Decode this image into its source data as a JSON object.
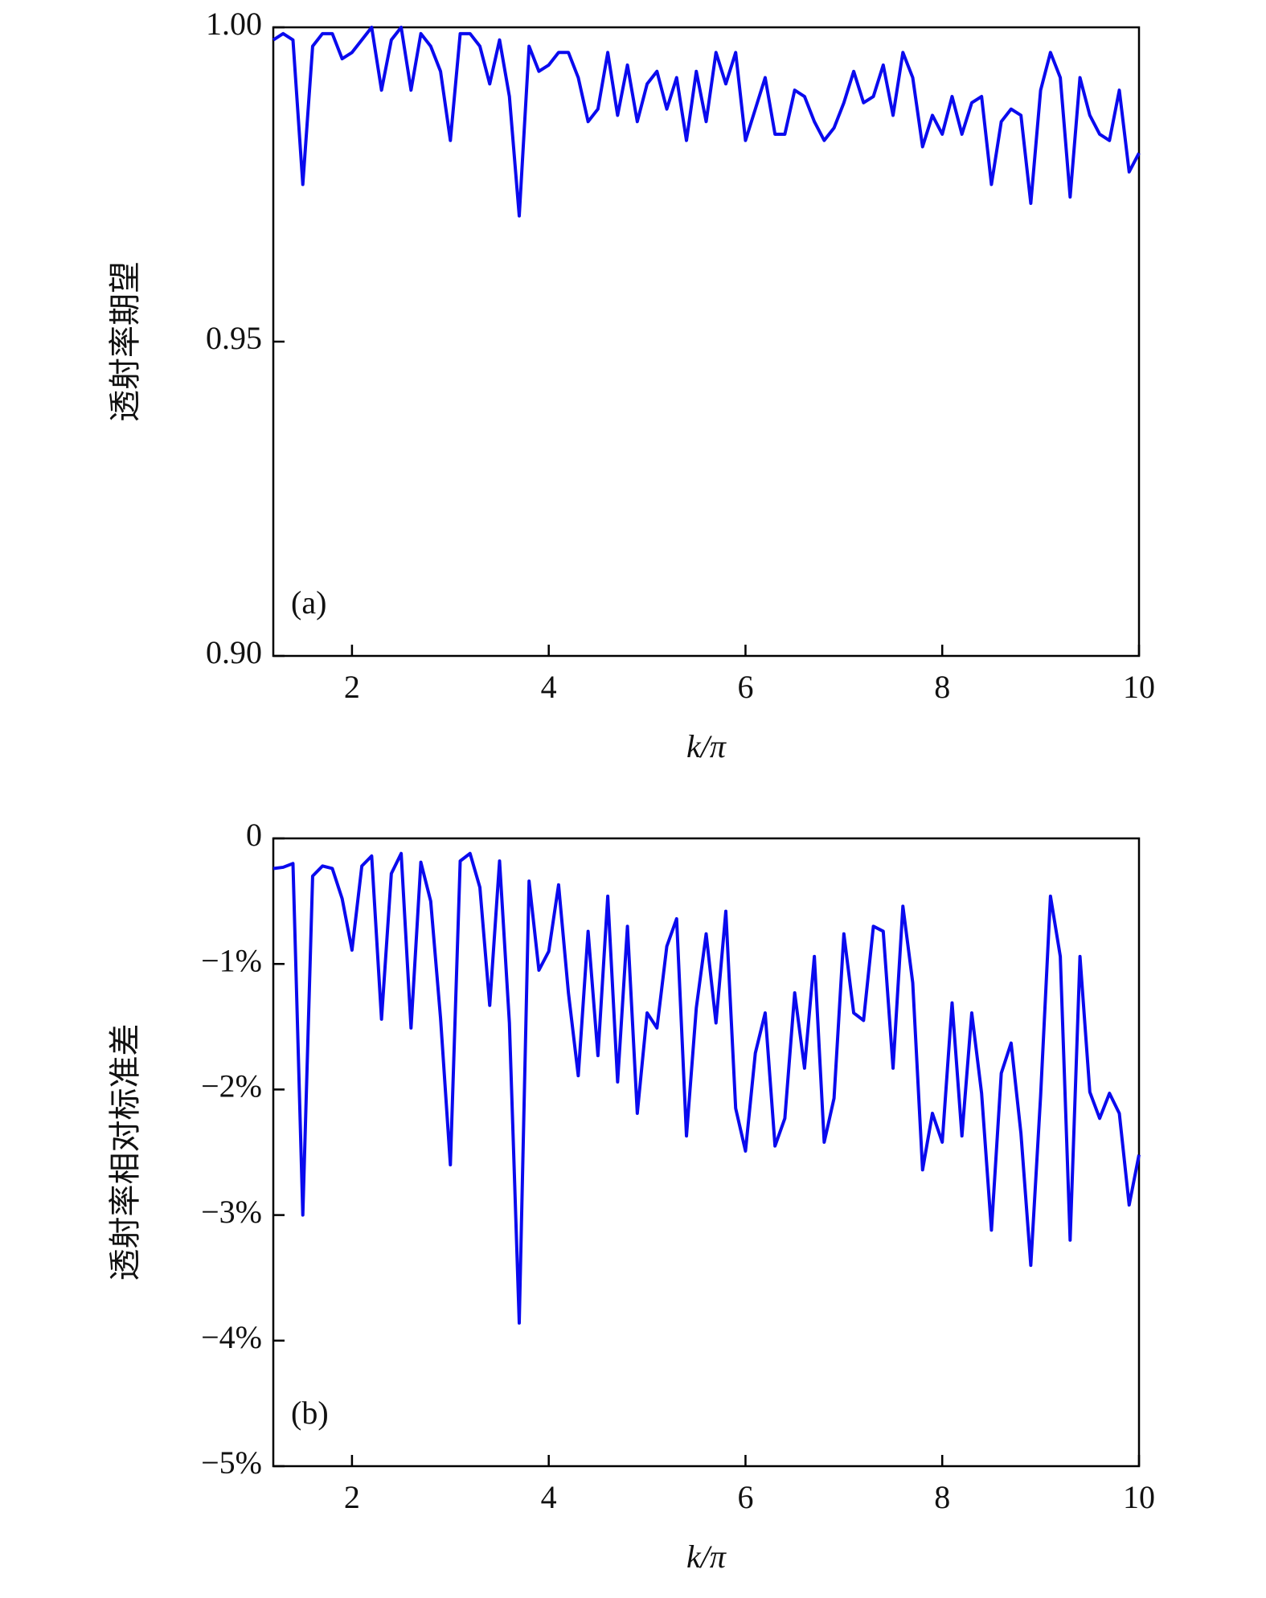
{
  "chart_data": [
    {
      "type": "line",
      "annotation": "(a)",
      "xlabel": "k/π",
      "ylabel": "透射率期望",
      "xlim": [
        1.2,
        10
      ],
      "xticks": [
        2,
        4,
        6,
        8,
        10
      ],
      "ylim": [
        0.9,
        1.0
      ],
      "yticks": [
        {
          "value": 0.9,
          "label": "0.90"
        },
        0.95,
        {
          "value": 1.0,
          "label": "1.00"
        }
      ],
      "x": [
        1.2,
        1.3,
        1.4,
        1.5,
        1.6,
        1.7,
        1.8,
        1.9,
        2.0,
        2.1,
        2.2,
        2.3,
        2.4,
        2.5,
        2.6,
        2.7,
        2.8,
        2.9,
        3.0,
        3.1,
        3.2,
        3.3,
        3.4,
        3.5,
        3.6,
        3.7,
        3.8,
        3.9,
        4.0,
        4.1,
        4.2,
        4.3,
        4.4,
        4.5,
        4.6,
        4.7,
        4.8,
        4.9,
        5.0,
        5.1,
        5.2,
        5.3,
        5.4,
        5.5,
        5.6,
        5.7,
        5.8,
        5.9,
        6.0,
        6.1,
        6.2,
        6.3,
        6.4,
        6.5,
        6.6,
        6.7,
        6.8,
        6.9,
        7.0,
        7.1,
        7.2,
        7.3,
        7.4,
        7.5,
        7.6,
        7.7,
        7.8,
        7.9,
        8.0,
        8.1,
        8.2,
        8.3,
        8.4,
        8.5,
        8.6,
        8.7,
        8.8,
        8.9,
        9.0,
        9.1,
        9.2,
        9.3,
        9.4,
        9.5,
        9.6,
        9.7,
        9.8,
        9.9,
        10.0
      ],
      "series": [
        {
          "color": "#0a0aee",
          "values": [
            0.998,
            0.999,
            0.998,
            0.975,
            0.997,
            0.999,
            0.999,
            0.995,
            0.996,
            0.998,
            1.0,
            0.99,
            0.998,
            1.0,
            0.99,
            0.999,
            0.997,
            0.993,
            0.982,
            0.999,
            0.999,
            0.997,
            0.991,
            0.998,
            0.989,
            0.97,
            0.997,
            0.993,
            0.994,
            0.996,
            0.996,
            0.992,
            0.985,
            0.987,
            0.996,
            0.986,
            0.994,
            0.985,
            0.991,
            0.993,
            0.987,
            0.992,
            0.982,
            0.993,
            0.985,
            0.996,
            0.991,
            0.996,
            0.982,
            0.987,
            0.992,
            0.983,
            0.983,
            0.99,
            0.989,
            0.985,
            0.982,
            0.984,
            0.988,
            0.993,
            0.988,
            0.989,
            0.994,
            0.986,
            0.996,
            0.992,
            0.981,
            0.986,
            0.983,
            0.989,
            0.983,
            0.988,
            0.989,
            0.975,
            0.985,
            0.987,
            0.986,
            0.972,
            0.99,
            0.996,
            0.992,
            0.973,
            0.992,
            0.986,
            0.983,
            0.982,
            0.99,
            0.977,
            0.98
          ]
        }
      ]
    },
    {
      "type": "line",
      "annotation": "(b)",
      "xlabel": "k/π",
      "ylabel": "透射率相对标准差",
      "xlim": [
        1.2,
        10
      ],
      "xticks": [
        2,
        4,
        6,
        8,
        10
      ],
      "ylim": [
        -5,
        0
      ],
      "yticks": [
        {
          "value": -5,
          "label": "−5%"
        },
        {
          "value": -4,
          "label": "−4%"
        },
        {
          "value": -3,
          "label": "−3%"
        },
        {
          "value": -2,
          "label": "−2%"
        },
        {
          "value": -1,
          "label": "−1%"
        },
        0
      ],
      "x": [
        1.2,
        1.3,
        1.4,
        1.5,
        1.6,
        1.7,
        1.8,
        1.9,
        2.0,
        2.1,
        2.2,
        2.3,
        2.4,
        2.5,
        2.6,
        2.7,
        2.8,
        2.9,
        3.0,
        3.1,
        3.2,
        3.3,
        3.4,
        3.5,
        3.6,
        3.7,
        3.8,
        3.9,
        4.0,
        4.1,
        4.2,
        4.3,
        4.4,
        4.5,
        4.6,
        4.7,
        4.8,
        4.9,
        5.0,
        5.1,
        5.2,
        5.3,
        5.4,
        5.5,
        5.6,
        5.7,
        5.8,
        5.9,
        6.0,
        6.1,
        6.2,
        6.3,
        6.4,
        6.5,
        6.6,
        6.7,
        6.8,
        6.9,
        7.0,
        7.1,
        7.2,
        7.3,
        7.4,
        7.5,
        7.6,
        7.7,
        7.8,
        7.9,
        8.0,
        8.1,
        8.2,
        8.3,
        8.4,
        8.5,
        8.6,
        8.7,
        8.8,
        8.9,
        9.0,
        9.1,
        9.2,
        9.3,
        9.4,
        9.5,
        9.6,
        9.7,
        9.8,
        9.9,
        10.0
      ],
      "series": [
        {
          "color": "#0a0aee",
          "values": [
            -0.24,
            -0.23,
            -0.2,
            -3.0,
            -0.3,
            -0.22,
            -0.24,
            -0.48,
            -0.89,
            -0.22,
            -0.14,
            -1.44,
            -0.28,
            -0.12,
            -1.51,
            -0.19,
            -0.5,
            -1.43,
            -2.6,
            -0.18,
            -0.12,
            -0.39,
            -1.33,
            -0.18,
            -1.47,
            -3.86,
            -0.34,
            -1.05,
            -0.9,
            -0.37,
            -1.23,
            -1.89,
            -0.74,
            -1.73,
            -0.46,
            -1.94,
            -0.7,
            -2.19,
            -1.39,
            -1.51,
            -0.86,
            -0.64,
            -2.37,
            -1.35,
            -0.76,
            -1.47,
            -0.58,
            -2.15,
            -2.49,
            -1.71,
            -1.39,
            -2.45,
            -2.23,
            -1.23,
            -1.83,
            -0.94,
            -2.42,
            -2.07,
            -0.76,
            -1.39,
            -1.45,
            -0.7,
            -0.74,
            -1.83,
            -0.54,
            -1.15,
            -2.64,
            -2.19,
            -2.42,
            -1.31,
            -2.37,
            -1.39,
            -2.03,
            -3.12,
            -1.87,
            -1.63,
            -2.35,
            -3.4,
            -2.05,
            -0.46,
            -0.94,
            -3.2,
            -0.94,
            -2.02,
            -2.23,
            -2.03,
            -2.19,
            -2.92,
            -2.52
          ]
        }
      ]
    }
  ]
}
